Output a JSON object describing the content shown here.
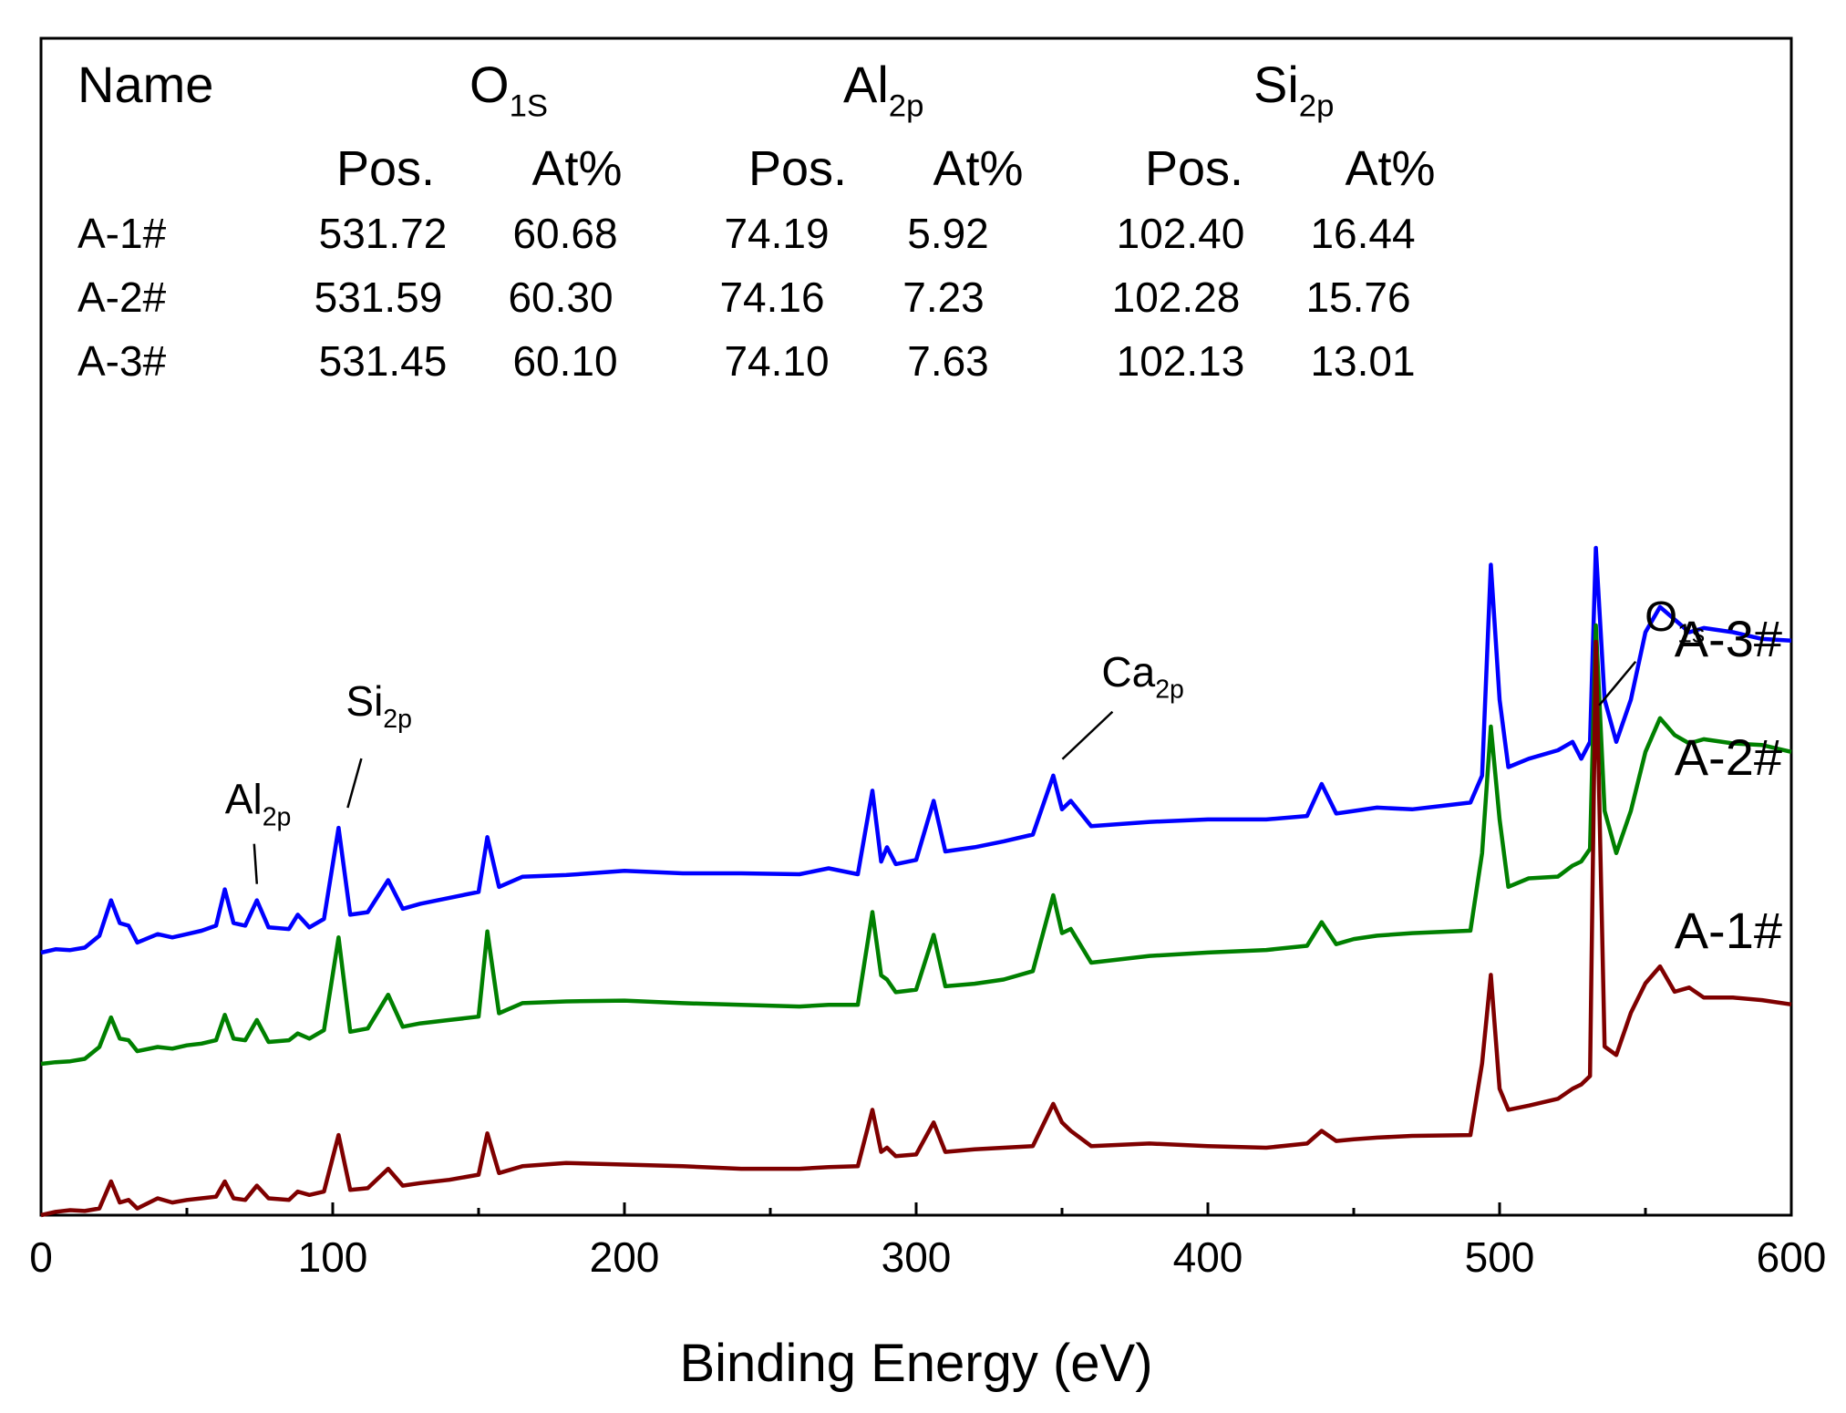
{
  "chart_data": {
    "type": "line",
    "title": "",
    "xlabel": "Binding Energy (eV)",
    "ylabel": "",
    "xlim": [
      0,
      600
    ],
    "x_ticks": [
      "0",
      "100",
      "200",
      "300",
      "400",
      "500",
      "600"
    ],
    "y_axis_labels": false,
    "grid": false,
    "legend": "none; series labelled inline at right end of each curve",
    "series": [
      {
        "name": "A-3#",
        "color": "#0000ff",
        "x": [
          0,
          5,
          10,
          15,
          20,
          24,
          27,
          30,
          33,
          40,
          45,
          50,
          55,
          60,
          63,
          66,
          70,
          74,
          78,
          85,
          88,
          92,
          97,
          102,
          106,
          112,
          119,
          124,
          130,
          140,
          150,
          153,
          157,
          165,
          180,
          200,
          220,
          240,
          260,
          270,
          280,
          285,
          288,
          290,
          293,
          300,
          306,
          310,
          320,
          330,
          340,
          347,
          350,
          353,
          360,
          380,
          400,
          420,
          434,
          439,
          444,
          450,
          458,
          470,
          490,
          494,
          497,
          500,
          503,
          510,
          520,
          525,
          528,
          531,
          533,
          536,
          540,
          545,
          550,
          555,
          560,
          565,
          570,
          580,
          590,
          600
        ],
        "y": [
          0,
          4,
          3,
          6,
          20,
          62,
          35,
          32,
          12,
          22,
          18,
          22,
          26,
          32,
          75,
          35,
          32,
          62,
          30,
          28,
          45,
          30,
          40,
          148,
          45,
          48,
          86,
          52,
          58,
          65,
          72,
          137,
          78,
          90,
          92,
          97,
          94,
          94,
          93,
          100,
          93,
          192,
          108,
          125,
          105,
          110,
          180,
          120,
          125,
          132,
          140,
          210,
          170,
          180,
          150,
          155,
          158,
          158,
          162,
          200,
          165,
          168,
          172,
          170,
          178,
          210,
          460,
          300,
          220,
          230,
          240,
          250,
          230,
          250,
          480,
          300,
          250,
          300,
          380,
          410,
          395,
          380,
          385,
          380,
          372,
          370
        ]
      },
      {
        "name": "A-2#",
        "color": "#008000",
        "x": [
          0,
          5,
          10,
          15,
          20,
          24,
          27,
          30,
          33,
          40,
          45,
          50,
          55,
          60,
          63,
          66,
          70,
          74,
          78,
          85,
          88,
          92,
          97,
          102,
          106,
          112,
          119,
          124,
          130,
          140,
          150,
          153,
          157,
          165,
          180,
          200,
          220,
          240,
          260,
          270,
          280,
          285,
          288,
          290,
          293,
          300,
          306,
          310,
          320,
          330,
          340,
          347,
          350,
          353,
          360,
          380,
          400,
          420,
          434,
          439,
          444,
          450,
          458,
          470,
          490,
          494,
          497,
          500,
          503,
          510,
          520,
          525,
          528,
          531,
          533,
          536,
          540,
          545,
          550,
          555,
          560,
          565,
          570,
          580,
          590,
          600
        ],
        "y": [
          0,
          2,
          3,
          6,
          20,
          55,
          30,
          28,
          15,
          20,
          18,
          22,
          24,
          28,
          58,
          30,
          28,
          52,
          26,
          28,
          36,
          30,
          40,
          150,
          38,
          42,
          82,
          44,
          48,
          52,
          56,
          157,
          60,
          72,
          74,
          75,
          72,
          70,
          68,
          70,
          70,
          180,
          105,
          100,
          85,
          88,
          153,
          92,
          95,
          100,
          110,
          200,
          155,
          160,
          120,
          128,
          132,
          135,
          140,
          168,
          142,
          148,
          152,
          155,
          158,
          250,
          400,
          290,
          210,
          220,
          222,
          235,
          240,
          255,
          520,
          300,
          250,
          300,
          370,
          410,
          390,
          380,
          385,
          380,
          378,
          370
        ]
      },
      {
        "name": "A-1#",
        "color": "#7f0000",
        "x": [
          0,
          5,
          10,
          15,
          20,
          24,
          27,
          30,
          33,
          40,
          45,
          50,
          55,
          60,
          63,
          66,
          70,
          74,
          78,
          85,
          88,
          92,
          97,
          102,
          106,
          112,
          119,
          124,
          130,
          140,
          150,
          153,
          157,
          165,
          180,
          200,
          220,
          240,
          260,
          270,
          280,
          285,
          288,
          290,
          293,
          300,
          306,
          310,
          320,
          330,
          340,
          347,
          350,
          353,
          360,
          380,
          400,
          420,
          434,
          439,
          444,
          450,
          458,
          470,
          490,
          494,
          497,
          500,
          503,
          510,
          520,
          525,
          528,
          531,
          533,
          536,
          540,
          545,
          550,
          555,
          560,
          565,
          570,
          580,
          590,
          600
        ],
        "y": [
          0,
          4,
          6,
          5,
          8,
          40,
          15,
          18,
          8,
          20,
          15,
          18,
          20,
          22,
          40,
          20,
          18,
          35,
          20,
          18,
          28,
          24,
          28,
          95,
          30,
          32,
          55,
          35,
          38,
          42,
          48,
          97,
          50,
          58,
          62,
          60,
          58,
          55,
          55,
          57,
          58,
          125,
          75,
          80,
          70,
          72,
          110,
          75,
          78,
          80,
          82,
          132,
          110,
          100,
          82,
          85,
          82,
          80,
          85,
          100,
          88,
          90,
          92,
          94,
          95,
          180,
          285,
          150,
          125,
          130,
          138,
          150,
          155,
          165,
          680,
          200,
          190,
          240,
          275,
          295,
          265,
          270,
          258,
          258,
          255,
          250
        ]
      }
    ],
    "peak_annotations": [
      {
        "base": "Al",
        "sub": "2p",
        "x": 74
      },
      {
        "base": "Si",
        "sub": "2p",
        "x": 102
      },
      {
        "base": "Ca",
        "sub": "2p",
        "x": 347
      },
      {
        "base": "O",
        "sub": "1s",
        "x": 531
      }
    ],
    "table": {
      "name_header": "Name",
      "groups": [
        {
          "base": "O",
          "sub": "1S"
        },
        {
          "base": "Al",
          "sub": "2p"
        },
        {
          "base": "Si",
          "sub": "2p"
        }
      ],
      "subheaders": [
        "Pos.",
        "At%"
      ],
      "rows": [
        {
          "name": "A-1#",
          "values": [
            "531.72",
            "60.68",
            "74.19",
            "5.92",
            "102.40",
            "16.44"
          ]
        },
        {
          "name": "A-2#",
          "values": [
            "531.59",
            "60.30",
            "74.16",
            "7.23",
            "102.28",
            "15.76"
          ]
        },
        {
          "name": "A-3#",
          "values": [
            "531.45",
            "60.10",
            "74.10",
            "7.63",
            "102.13",
            "13.01"
          ]
        }
      ]
    }
  }
}
